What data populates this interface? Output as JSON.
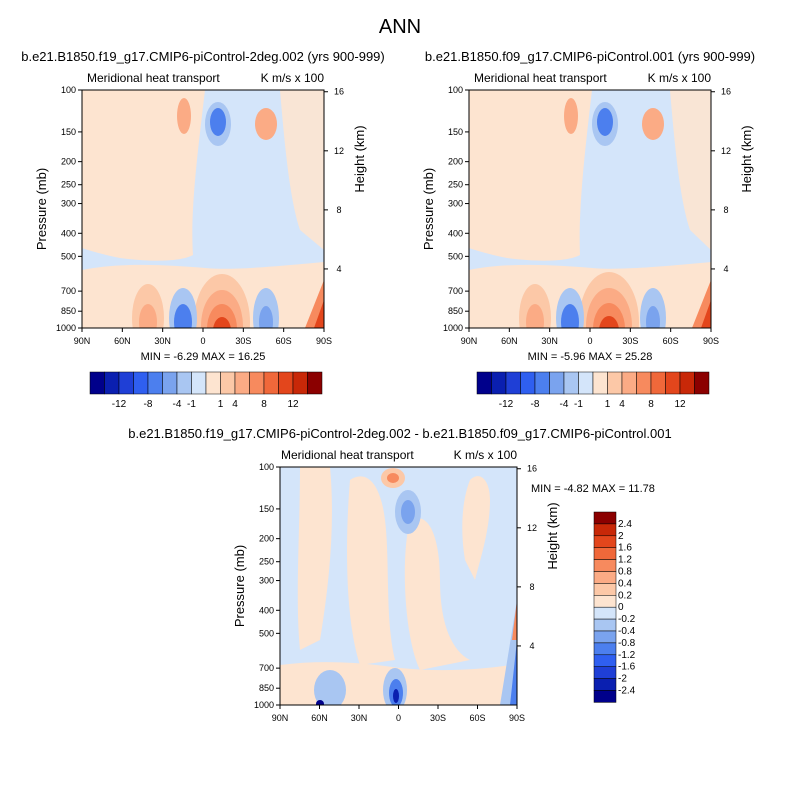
{
  "figure_title": "ANN",
  "palette": {
    "neg": [
      "#00008b",
      "#0a1fb0",
      "#1f3fd6",
      "#2f5ff0",
      "#4c7fee",
      "#7aa3ee",
      "#a9c6f2",
      "#d4e5fa"
    ],
    "pos": [
      "#fde4d0",
      "#fcc8a7",
      "#fbab85",
      "#f78a5e",
      "#f0683a",
      "#e3461c",
      "#c82808",
      "#8b0000"
    ]
  },
  "chart_data": [
    {
      "type": "contour",
      "id": "top-left",
      "title": "b.e21.B1850.f19_g17.CMIP6-piControl-2deg.002 (yrs 900-999)",
      "left_string": "Meridional heat transport",
      "right_string": "K m/s x 100",
      "ylabel": "Pressure (mb)",
      "y2label": "Height (km)",
      "x_ticks": [
        "90N",
        "60N",
        "30N",
        "0",
        "30S",
        "60S",
        "90S"
      ],
      "y_ticks": [
        "100",
        "150",
        "200",
        "250",
        "300",
        "400",
        "500",
        "700",
        "850",
        "1000"
      ],
      "y2_ticks": [
        "16",
        "12",
        "8",
        "4"
      ],
      "min": "-6.29",
      "max": "16.25",
      "stats_text": "MIN =  -6.29  MAX =  16.25",
      "colorbar": {
        "orientation": "horizontal",
        "labels": [
          "-12",
          "-8",
          "-4",
          "-1",
          "1",
          "4",
          "8",
          "12"
        ]
      }
    },
    {
      "type": "contour",
      "id": "top-right",
      "title": "b.e21.B1850.f09_g17.CMIP6-piControl.001 (yrs 900-999)",
      "left_string": "Meridional heat transport",
      "right_string": "K m/s x 100",
      "ylabel": "Pressure (mb)",
      "y2label": "Height (km)",
      "x_ticks": [
        "90N",
        "60N",
        "30N",
        "0",
        "30S",
        "60S",
        "90S"
      ],
      "y_ticks": [
        "100",
        "150",
        "200",
        "250",
        "300",
        "400",
        "500",
        "700",
        "850",
        "1000"
      ],
      "y2_ticks": [
        "16",
        "12",
        "8",
        "4"
      ],
      "min": "-5.96",
      "max": "25.28",
      "stats_text": "MIN =  -5.96  MAX =  25.28",
      "colorbar": {
        "orientation": "horizontal",
        "labels": [
          "-12",
          "-8",
          "-4",
          "-1",
          "1",
          "4",
          "8",
          "12"
        ]
      }
    },
    {
      "type": "contour",
      "id": "bottom-diff",
      "title": "b.e21.B1850.f19_g17.CMIP6-piControl-2deg.002 - b.e21.B1850.f09_g17.CMIP6-piControl.001",
      "left_string": "Meridional heat transport",
      "right_string": "K m/s x 100",
      "ylabel": "Pressure (mb)",
      "y2label": "Height (km)",
      "x_ticks": [
        "90N",
        "60N",
        "30N",
        "0",
        "30S",
        "60S",
        "90S"
      ],
      "y_ticks": [
        "100",
        "150",
        "200",
        "250",
        "300",
        "400",
        "500",
        "700",
        "850",
        "1000"
      ],
      "y2_ticks": [
        "16",
        "12",
        "8",
        "4"
      ],
      "min": "-4.82",
      "max": "11.78",
      "stats_text": "MIN =  -4.82  MAX =  11.78",
      "colorbar": {
        "orientation": "vertical",
        "labels": [
          "2.4",
          "2",
          "1.6",
          "1.2",
          "0.8",
          "0.4",
          "0.2",
          "0",
          "-0.2",
          "-0.4",
          "-0.8",
          "-1.2",
          "-1.6",
          "-2",
          "-2.4"
        ]
      }
    }
  ]
}
